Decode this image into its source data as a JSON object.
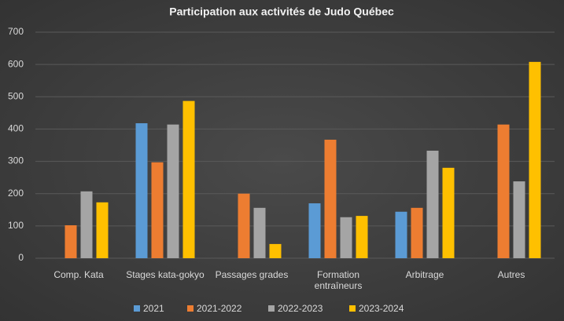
{
  "chart_data": {
    "type": "bar",
    "title": "Participation aux activités de Judo Québec",
    "categories": [
      "Comp. Kata",
      "Stages kata-gokyo",
      "Passages grades",
      "Formation entraîneurs",
      "Arbitrage",
      "Autres"
    ],
    "series": [
      {
        "name": "2021",
        "color": "#5b9bd5",
        "values": [
          null,
          418,
          null,
          170,
          144,
          null
        ]
      },
      {
        "name": "2021-2022",
        "color": "#ed7d31",
        "values": [
          102,
          297,
          200,
          367,
          156,
          414
        ]
      },
      {
        "name": "2022-2023",
        "color": "#a5a5a5",
        "values": [
          207,
          414,
          156,
          127,
          333,
          238
        ]
      },
      {
        "name": "2023-2024",
        "color": "#ffc000",
        "values": [
          173,
          487,
          44,
          131,
          280,
          608
        ]
      }
    ],
    "ylim": [
      0,
      700
    ],
    "yticks": [
      0,
      100,
      200,
      300,
      400,
      500,
      600,
      700
    ],
    "grid": true,
    "legend": "bottom"
  }
}
